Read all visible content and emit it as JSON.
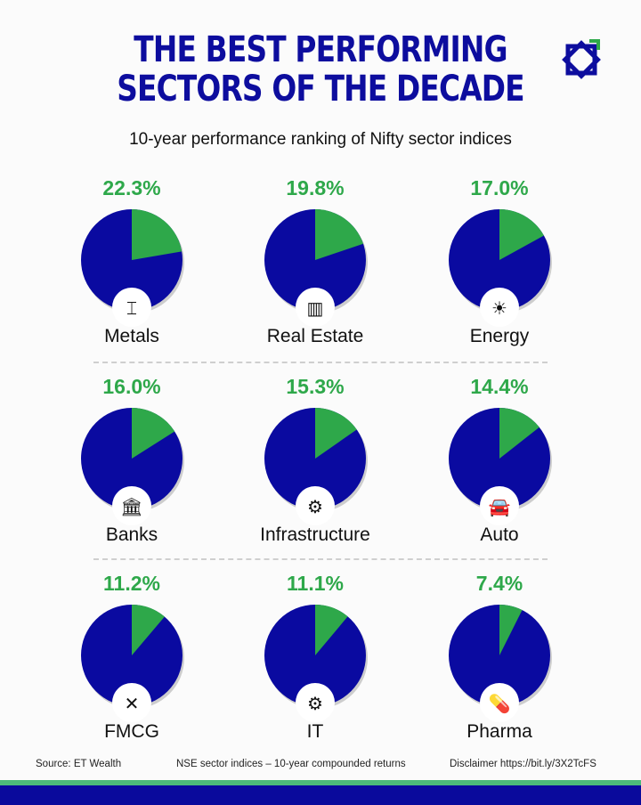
{
  "header": {
    "title_line1": "THE BEST PERFORMING",
    "title_line2": "SECTORS OF THE DECADE",
    "subtitle": "10-year performance ranking of Nifty sector indices"
  },
  "colors": {
    "accent_blue": "#0a0aa0",
    "accent_green": "#2ea84a",
    "band_green": "#4dbb7a"
  },
  "chart_data": {
    "type": "pie",
    "title": "THE BEST PERFORMING SECTORS OF THE DECADE",
    "subtitle": "10-year performance ranking of Nifty sector indices",
    "items": [
      {
        "label": "Metals",
        "value": 22.3,
        "value_label": "22.3%",
        "icon": "steel-beam-icon"
      },
      {
        "label": "Real Estate",
        "value": 19.8,
        "value_label": "19.8%",
        "icon": "buildings-icon"
      },
      {
        "label": "Energy",
        "value": 17.0,
        "value_label": "17.0%",
        "icon": "solar-wind-icon"
      },
      {
        "label": "Banks",
        "value": 16.0,
        "value_label": "16.0%",
        "icon": "bank-icon"
      },
      {
        "label": "Infrastructure",
        "value": 15.3,
        "value_label": "15.3%",
        "icon": "infrastructure-gear-icon"
      },
      {
        "label": "Auto",
        "value": 14.4,
        "value_label": "14.4%",
        "icon": "car-icon"
      },
      {
        "label": "FMCG",
        "value": 11.2,
        "value_label": "11.2%",
        "icon": "fork-knife-icon"
      },
      {
        "label": "IT",
        "value": 11.1,
        "value_label": "11.1%",
        "icon": "chip-gear-icon"
      },
      {
        "label": "Pharma",
        "value": 7.4,
        "value_label": "7.4%",
        "icon": "pills-icon"
      }
    ]
  },
  "footer": {
    "source": "Source: ET Wealth",
    "note": "NSE sector indices – 10-year compounded returns",
    "disclaimer": "Disclaimer https://bit.ly/3X2TcFS"
  }
}
